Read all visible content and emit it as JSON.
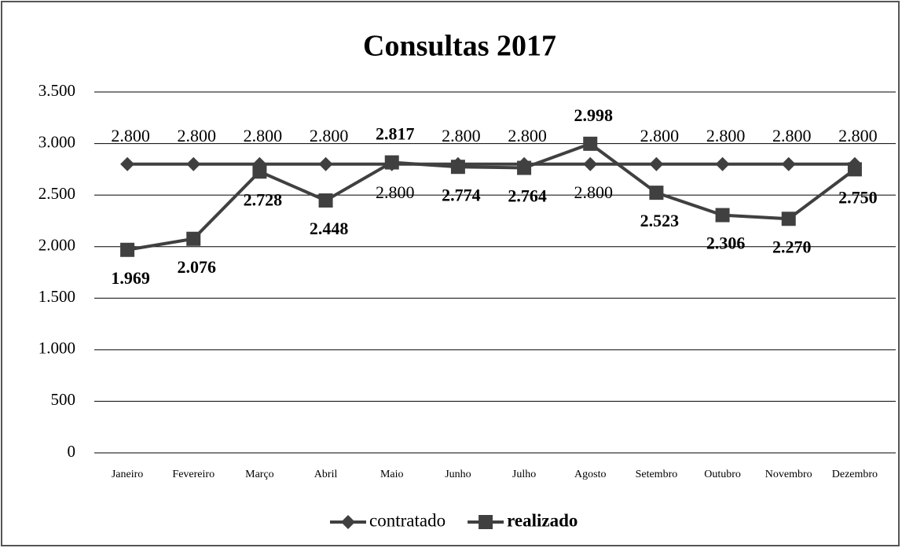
{
  "chart_data": {
    "type": "line",
    "title": "Consultas 2017",
    "categories": [
      "Janeiro",
      "Fevereiro",
      "Março",
      "Abril",
      "Maio",
      "Junho",
      "Julho",
      "Agosto",
      "Setembro",
      "Outubro",
      "Novembro",
      "Dezembro"
    ],
    "series": [
      {
        "name": "contratado",
        "color": "#404040",
        "marker": "diamond",
        "values": [
          2800,
          2800,
          2800,
          2800,
          2800,
          2800,
          2800,
          2800,
          2800,
          2800,
          2800,
          2800
        ],
        "value_labels": [
          "2.800",
          "2.800",
          "2.800",
          "2.800",
          "2.800",
          "2.800",
          "2.800",
          "2.800",
          "2.800",
          "2.800",
          "2.800",
          "2.800"
        ]
      },
      {
        "name": "realizado",
        "color": "#404040",
        "marker": "square",
        "values": [
          1969,
          2076,
          2728,
          2448,
          2817,
          2774,
          2764,
          2998,
          2523,
          2306,
          2270,
          2750
        ],
        "value_labels": [
          "1.969",
          "2.076",
          "2.728",
          "2.448",
          "2.817",
          "2.774",
          "2.764",
          "2.998",
          "2.523",
          "2.306",
          "2.270",
          "2.750"
        ]
      }
    ],
    "ylim": [
      0,
      3500
    ],
    "yticks": [
      0,
      500,
      {
        "value": 1000,
        "label": "1.000"
      },
      {
        "value": 1500,
        "label": "1.500"
      },
      {
        "value": 2000,
        "label": "2.000"
      },
      {
        "value": 2500,
        "label": "2.500"
      },
      {
        "value": 3000,
        "label": "3.000"
      },
      {
        "value": 3500,
        "label": "3.500"
      }
    ],
    "grid": true,
    "legend": "bottom"
  }
}
